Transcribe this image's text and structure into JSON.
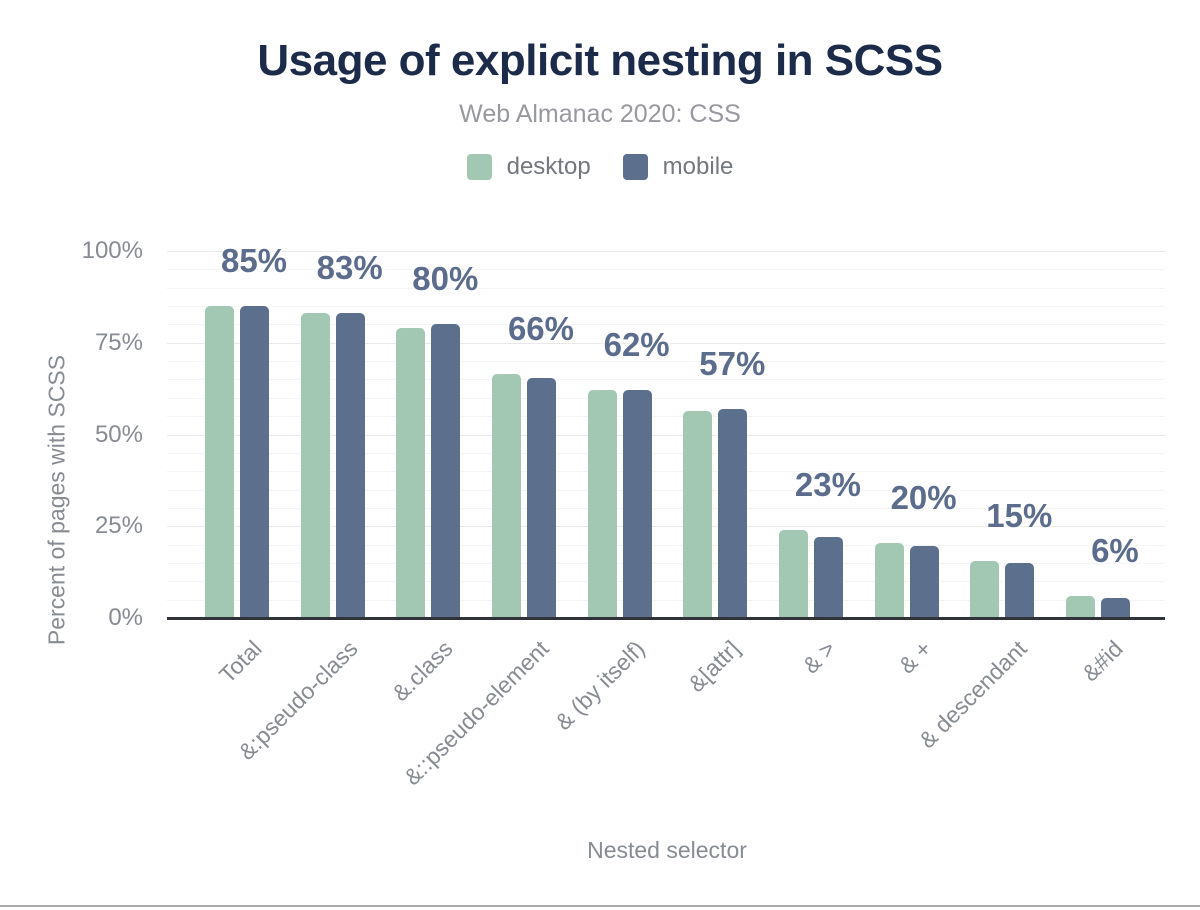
{
  "header": {
    "title": "Usage of explicit nesting in SCSS",
    "subtitle": "Web Almanac 2020: CSS"
  },
  "legend": [
    {
      "label": "desktop",
      "color": "#a2c8b3"
    },
    {
      "label": "mobile",
      "color": "#5c6f8c"
    }
  ],
  "colors": {
    "title": "#1c2b4a",
    "subtitle": "#97999f",
    "axis_text": "#878b92",
    "legend_text": "#73777e",
    "data_label": "#5b6c8d",
    "baseline": "#303338",
    "grid_major": "#e9e9ea",
    "grid_minor": "#f5f4f5",
    "bottom_edge": "#ababab",
    "background": "#ffffff"
  },
  "chart_data": {
    "type": "bar",
    "title": "Usage of explicit nesting in SCSS",
    "subtitle": "Web Almanac 2020: CSS",
    "categories": [
      "Total",
      "&:pseudo-class",
      "&.class",
      "&::pseudo-element",
      "& (by itself)",
      "&[attr]",
      "& >",
      "& +",
      "& descendant",
      "&#id"
    ],
    "series": [
      {
        "name": "desktop",
        "color": "#a2c8b3",
        "values": [
          85,
          83,
          79,
          66.5,
          62,
          56.5,
          24,
          20.5,
          15.5,
          6
        ]
      },
      {
        "name": "mobile",
        "color": "#5c6f8c",
        "values": [
          85,
          83,
          80,
          65.5,
          62,
          57,
          22,
          19.5,
          15,
          5.5
        ]
      }
    ],
    "value_labels": [
      "85%",
      "83%",
      "80%",
      "66%",
      "62%",
      "57%",
      "23%",
      "20%",
      "15%",
      "6%"
    ],
    "xlabel": "Nested selector",
    "ylabel": "Percent of pages with SCSS",
    "y_ticks": [
      "0%",
      "25%",
      "50%",
      "75%",
      "100%"
    ],
    "ylim": [
      0,
      100
    ],
    "grid": "horizontal: major every 25%, minor every 5%",
    "legend_position": "top-center"
  }
}
